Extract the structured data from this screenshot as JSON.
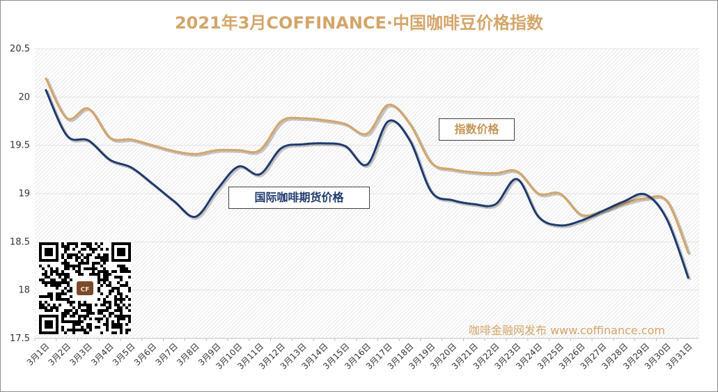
{
  "chart_data": {
    "type": "line",
    "title": "2021年3月COFFINANCE·中国咖啡豆价格指数",
    "xlabel": "",
    "ylabel": "",
    "ylim": [
      17.5,
      20.5
    ],
    "yticks": [
      "20.5",
      "20",
      "19.5",
      "19",
      "18.5",
      "18",
      "17.5"
    ],
    "grid": "horizontal",
    "background": "diagonal-hatch",
    "categories": [
      "3月1日",
      "3月2日",
      "3月3日",
      "3月4日",
      "3月5日",
      "3月6日",
      "3月7日",
      "3月8日",
      "3月9日",
      "3月10日",
      "3月11日",
      "3月12日",
      "3月13日",
      "3月14日",
      "3月15日",
      "3月16日",
      "3月17日",
      "3月18日",
      "3月19日",
      "3月20日",
      "3月21日",
      "3月22日",
      "3月23日",
      "3月24日",
      "3月25日",
      "3月26日",
      "3月27日",
      "3月28日",
      "3月29日",
      "3月30日",
      "3月31日"
    ],
    "series": [
      {
        "name": "指数价格",
        "color": "#d4a56a",
        "values": [
          20.2,
          19.78,
          19.88,
          19.58,
          19.56,
          19.5,
          19.44,
          19.41,
          19.45,
          19.45,
          19.45,
          19.75,
          19.78,
          19.76,
          19.72,
          19.62,
          19.92,
          19.72,
          19.32,
          19.25,
          19.22,
          19.21,
          19.23,
          19.0,
          19.0,
          18.78,
          18.82,
          18.9,
          18.95,
          18.92,
          18.38
        ]
      },
      {
        "name": "国际咖啡期货价格",
        "color": "#1e3a6e",
        "values": [
          20.08,
          19.6,
          19.55,
          19.35,
          19.27,
          19.1,
          18.92,
          18.76,
          19.04,
          19.28,
          19.2,
          19.47,
          19.51,
          19.52,
          19.49,
          19.3,
          19.75,
          19.55,
          19.02,
          18.93,
          18.89,
          18.89,
          19.15,
          18.76,
          18.67,
          18.72,
          18.82,
          18.92,
          18.99,
          18.73,
          18.12
        ]
      }
    ]
  },
  "footer_text": "咖啡金融网发布 www.coffinance.com",
  "qr_logo_text": "CF",
  "logo_icon": "coffee-cup-icon"
}
